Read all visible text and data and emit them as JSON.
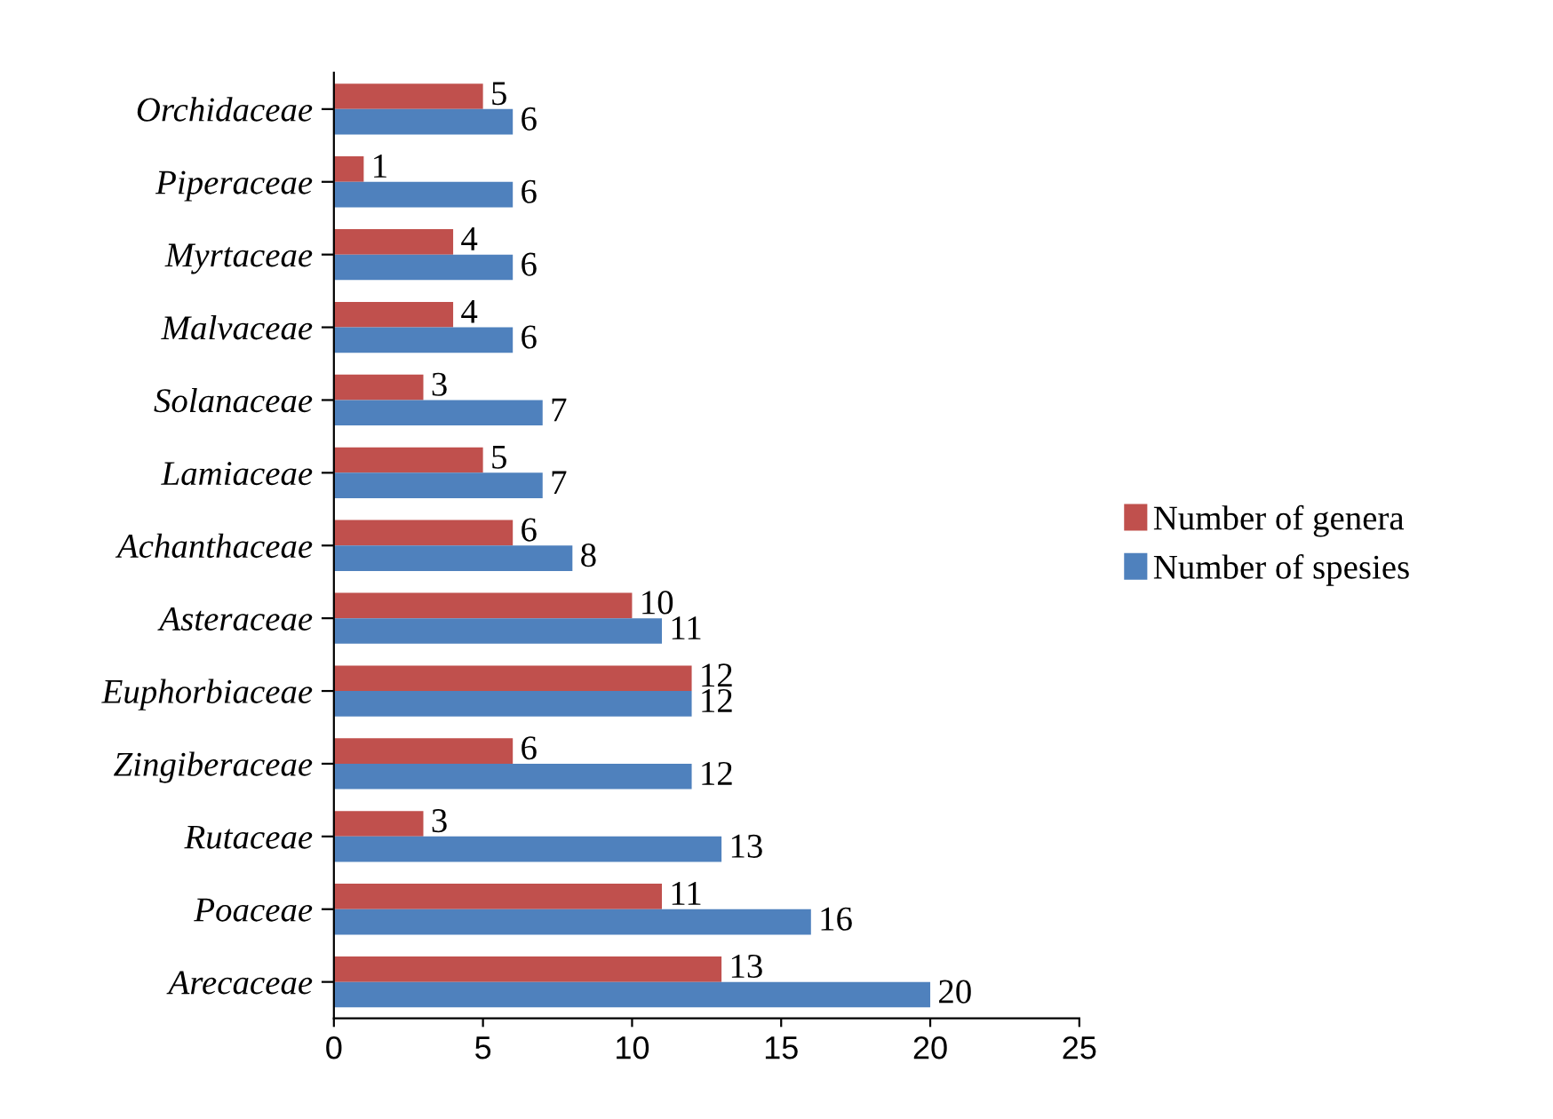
{
  "chart_data": {
    "type": "bar",
    "orientation": "horizontal",
    "categories": [
      "Orchidaceae",
      "Piperaceae",
      "Myrtaceae",
      "Malvaceae",
      "Solanaceae",
      "Lamiaceae",
      "Achanthaceae",
      "Asteraceae",
      "Euphorbiaceae",
      "Zingiberaceae",
      "Rutaceae",
      "Poaceae",
      "Arecaceae"
    ],
    "series": [
      {
        "name": "Number of genera",
        "color": "#c0504d",
        "values": [
          5,
          1,
          4,
          4,
          3,
          5,
          6,
          10,
          12,
          6,
          3,
          11,
          13
        ]
      },
      {
        "name": "Number of spesies",
        "color": "#4f81bd",
        "values": [
          6,
          6,
          6,
          6,
          7,
          7,
          8,
          11,
          12,
          12,
          13,
          16,
          20
        ]
      }
    ],
    "xlim": [
      0,
      25
    ],
    "xticks": [
      0,
      5,
      10,
      15,
      20,
      25
    ],
    "data_labels": true,
    "grid": false,
    "legend": "right"
  }
}
